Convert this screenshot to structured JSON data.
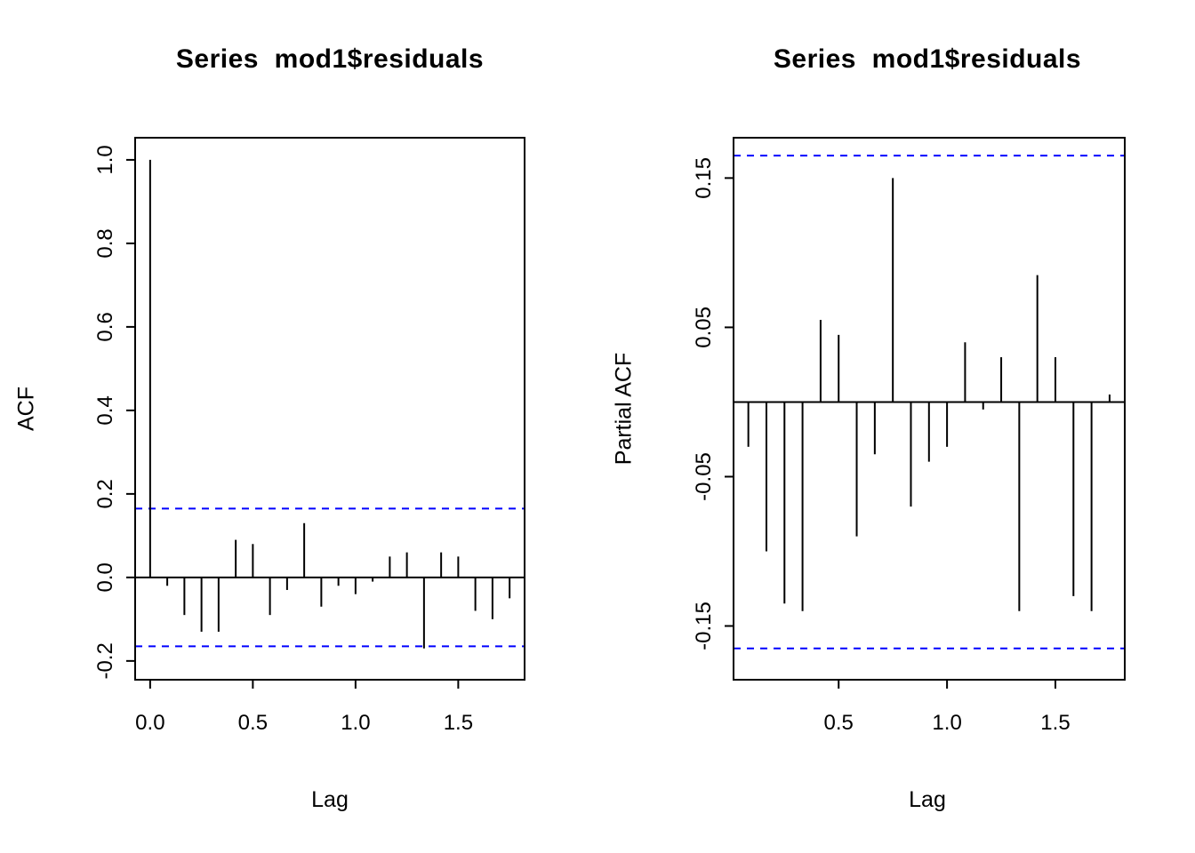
{
  "colors": {
    "bar": "#000000",
    "confidence_line": "#0000FF",
    "axis": "#000000",
    "background": "#FFFFFF"
  },
  "chart_data": [
    {
      "type": "bar",
      "title": "Series  mod1$residuals",
      "xlabel": "Lag",
      "ylabel": "ACF",
      "x": [
        0.0,
        0.0833,
        0.1667,
        0.25,
        0.3333,
        0.4167,
        0.5,
        0.5833,
        0.6667,
        0.75,
        0.8333,
        0.9167,
        1.0,
        1.0833,
        1.1667,
        1.25,
        1.3333,
        1.4167,
        1.5,
        1.5833,
        1.6667,
        1.75
      ],
      "values": [
        1.0,
        -0.02,
        -0.09,
        -0.13,
        -0.13,
        0.09,
        0.08,
        -0.09,
        -0.03,
        0.13,
        -0.07,
        -0.02,
        -0.04,
        -0.01,
        0.05,
        0.06,
        -0.17,
        0.06,
        0.05,
        -0.08,
        -0.1,
        -0.05
      ],
      "confidence_bound": 0.165,
      "zero_line": true,
      "grid": false,
      "xlim": [
        -0.073,
        1.823
      ],
      "ylim": [
        -0.245,
        1.053
      ],
      "xticks": [
        0.0,
        0.5,
        1.0,
        1.5
      ],
      "xtick_labels": [
        "0.0",
        "0.5",
        "1.0",
        "1.5"
      ],
      "yticks": [
        -0.2,
        0.0,
        0.2,
        0.4,
        0.6,
        0.8,
        1.0
      ],
      "ytick_labels": [
        "-0.2",
        "0.0",
        "0.2",
        "0.4",
        "0.6",
        "0.8",
        "1.0"
      ]
    },
    {
      "type": "bar",
      "title": "Series  mod1$residuals",
      "xlabel": "Lag",
      "ylabel": "Partial ACF",
      "x": [
        0.0833,
        0.1667,
        0.25,
        0.3333,
        0.4167,
        0.5,
        0.5833,
        0.6667,
        0.75,
        0.8333,
        0.9167,
        1.0,
        1.0833,
        1.1667,
        1.25,
        1.3333,
        1.4167,
        1.5,
        1.5833,
        1.6667,
        1.75
      ],
      "values": [
        -0.03,
        -0.1,
        -0.135,
        -0.14,
        0.055,
        0.045,
        -0.09,
        -0.035,
        0.15,
        -0.07,
        -0.04,
        -0.03,
        0.04,
        -0.005,
        0.03,
        -0.14,
        0.085,
        0.03,
        -0.13,
        -0.14,
        0.005
      ],
      "confidence_bound": 0.165,
      "zero_line": true,
      "grid": false,
      "xlim": [
        0.015,
        1.82
      ],
      "ylim": [
        -0.186,
        0.177
      ],
      "xticks": [
        0.5,
        1.0,
        1.5
      ],
      "xtick_labels": [
        "0.5",
        "1.0",
        "1.5"
      ],
      "yticks": [
        -0.15,
        -0.05,
        0.05,
        0.15
      ],
      "ytick_labels": [
        "-0.15",
        "-0.05",
        "0.05",
        "0.15"
      ]
    }
  ]
}
